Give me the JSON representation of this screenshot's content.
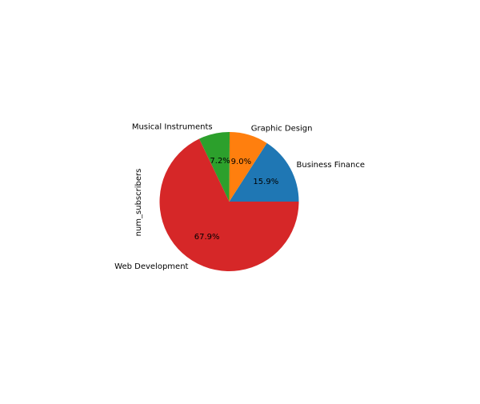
{
  "chart_data": {
    "type": "pie",
    "ylabel": "num_subscribers",
    "categories": [
      "Business Finance",
      "Graphic Design",
      "Musical Instruments",
      "Web Development"
    ],
    "values": [
      15.9,
      9.0,
      7.2,
      67.9
    ],
    "value_labels": [
      "15.9%",
      "9.0%",
      "7.2%",
      "67.9%"
    ],
    "colors": [
      "#1f77b4",
      "#ff7f0e",
      "#2ca02c",
      "#d62728"
    ],
    "start_angle_deg": 0,
    "direction": "counterclockwise"
  }
}
